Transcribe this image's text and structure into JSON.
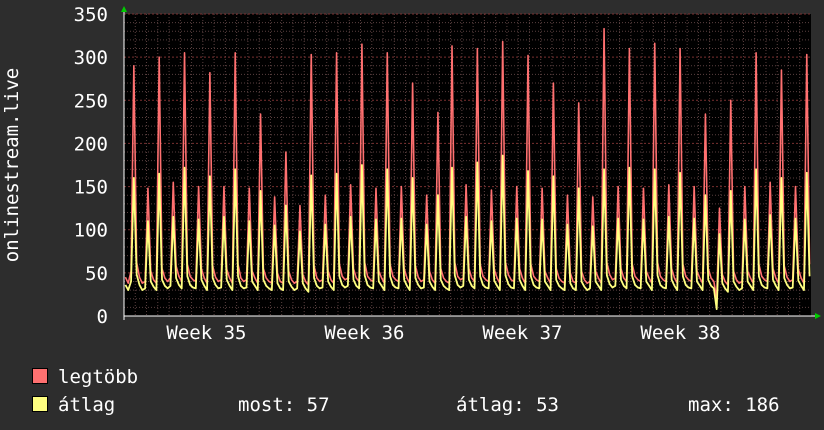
{
  "chart_data": {
    "type": "line",
    "title": "",
    "ylabel": "onlinestream.live",
    "xlabel": "",
    "ylim": [
      0,
      350
    ],
    "yticks": [
      0,
      50,
      100,
      150,
      200,
      250,
      300,
      350
    ],
    "xticks": [
      "Week 35",
      "Week 36",
      "Week 37",
      "Week 38"
    ],
    "grid": true,
    "legend_position": "bottom-left",
    "x_resolution": "6h",
    "series": [
      {
        "name": "legtöbb",
        "color": "#ff7070",
        "values": [
          45,
          38,
          52,
          290,
          62,
          45,
          38,
          40,
          148,
          52,
          42,
          38,
          300,
          55,
          44,
          40,
          44,
          155,
          58,
          46,
          40,
          305,
          60,
          46,
          42,
          40,
          150,
          55,
          44,
          38,
          282,
          58,
          45,
          40,
          42,
          150,
          54,
          44,
          38,
          305,
          60,
          44,
          40,
          42,
          148,
          52,
          44,
          38,
          234,
          55,
          44,
          40,
          38,
          138,
          50,
          40,
          38,
          190,
          52,
          42,
          38,
          40,
          128,
          48,
          40,
          36,
          303,
          58,
          44,
          40,
          42,
          140,
          52,
          42,
          38,
          305,
          60,
          46,
          42,
          44,
          152,
          55,
          44,
          40,
          315,
          62,
          46,
          42,
          40,
          148,
          52,
          44,
          38,
          305,
          60,
          46,
          42,
          40,
          150,
          55,
          44,
          38,
          270,
          58,
          45,
          40,
          42,
          140,
          52,
          42,
          38,
          236,
          55,
          44,
          40,
          38,
          313,
          62,
          46,
          42,
          44,
          152,
          55,
          44,
          40,
          310,
          60,
          46,
          42,
          40,
          146,
          54,
          44,
          38,
          318,
          62,
          48,
          42,
          40,
          150,
          55,
          44,
          38,
          302,
          60,
          46,
          42,
          40,
          148,
          52,
          44,
          38,
          270,
          55,
          44,
          40,
          38,
          140,
          50,
          40,
          38,
          247,
          52,
          42,
          38,
          40,
          138,
          52,
          44,
          38,
          333,
          62,
          48,
          42,
          44,
          150,
          55,
          44,
          40,
          310,
          60,
          46,
          42,
          40,
          148,
          52,
          44,
          38,
          316,
          62,
          46,
          42,
          40,
          152,
          55,
          44,
          38,
          310,
          60,
          46,
          42,
          40,
          150,
          52,
          44,
          38,
          234,
          55,
          44,
          40,
          20,
          125,
          48,
          40,
          36,
          250,
          52,
          42,
          38,
          40,
          150,
          52,
          44,
          38,
          305,
          60,
          46,
          42,
          40,
          155,
          55,
          44,
          38,
          285,
          58,
          45,
          40,
          42,
          150,
          54,
          44,
          38,
          303,
          60
        ]
      },
      {
        "name": "átlag",
        "color": "#ffff80",
        "values": [
          36,
          30,
          40,
          160,
          48,
          36,
          30,
          32,
          110,
          40,
          34,
          30,
          165,
          42,
          35,
          32,
          35,
          115,
          44,
          36,
          32,
          172,
          46,
          36,
          33,
          32,
          112,
          42,
          35,
          30,
          162,
          44,
          36,
          32,
          33,
          115,
          42,
          35,
          30,
          170,
          46,
          35,
          32,
          33,
          110,
          40,
          35,
          30,
          145,
          42,
          35,
          32,
          30,
          105,
          38,
          32,
          30,
          128,
          40,
          34,
          30,
          32,
          98,
          38,
          32,
          28,
          163,
          44,
          35,
          32,
          33,
          106,
          40,
          34,
          30,
          165,
          46,
          36,
          33,
          35,
          115,
          42,
          35,
          32,
          175,
          47,
          36,
          33,
          32,
          112,
          40,
          35,
          30,
          170,
          46,
          36,
          33,
          32,
          113,
          42,
          35,
          30,
          160,
          44,
          36,
          32,
          33,
          106,
          40,
          34,
          30,
          140,
          42,
          35,
          32,
          30,
          172,
          47,
          36,
          33,
          35,
          115,
          42,
          35,
          32,
          178,
          46,
          36,
          33,
          32,
          110,
          41,
          35,
          30,
          186,
          47,
          37,
          33,
          32,
          113,
          42,
          35,
          30,
          168,
          46,
          36,
          33,
          32,
          112,
          40,
          35,
          30,
          162,
          42,
          35,
          32,
          30,
          106,
          38,
          32,
          30,
          148,
          40,
          34,
          30,
          32,
          104,
          40,
          35,
          30,
          170,
          47,
          37,
          33,
          35,
          113,
          42,
          35,
          32,
          172,
          46,
          36,
          33,
          32,
          112,
          40,
          35,
          30,
          170,
          47,
          36,
          33,
          32,
          115,
          42,
          35,
          30,
          166,
          46,
          36,
          33,
          32,
          113,
          40,
          35,
          30,
          140,
          42,
          35,
          32,
          8,
          95,
          38,
          32,
          28,
          145,
          40,
          34,
          30,
          32,
          112,
          40,
          35,
          30,
          170,
          46,
          36,
          33,
          32,
          117,
          42,
          35,
          30,
          160,
          44,
          36,
          32,
          33,
          113,
          41,
          35,
          30,
          166,
          46
        ]
      }
    ],
    "stats": [
      {
        "label": "most:",
        "value": "57"
      },
      {
        "label": "átlag:",
        "value": "53"
      },
      {
        "label": "max:",
        "value": "186"
      }
    ]
  },
  "colors": {
    "background": "#2d2d2d",
    "plot_background": "#000000",
    "grid_minor": "#5a4040",
    "grid_major": "#7a3030",
    "axis": "#ffffff",
    "arrow": "#00cc00"
  }
}
